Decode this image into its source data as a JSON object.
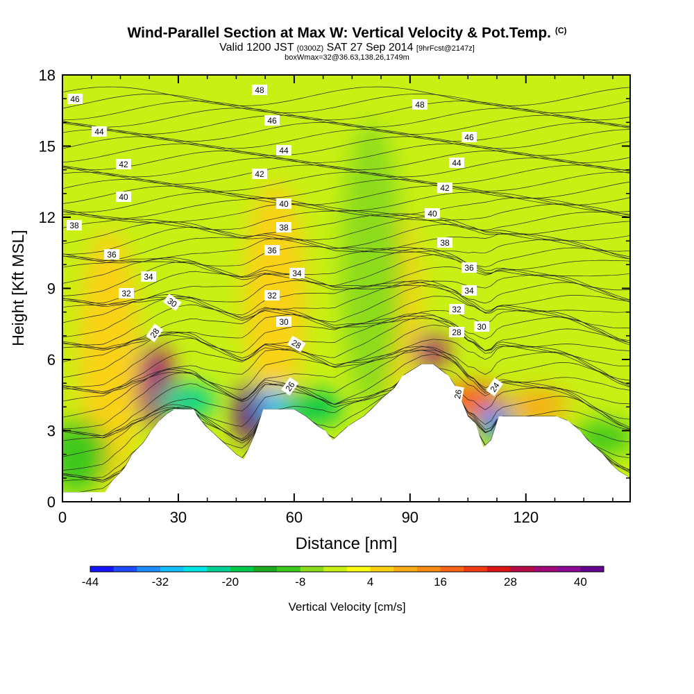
{
  "chart_data": {
    "type": "heatmap",
    "title": "Wind-Parallel Section at Max W: Vertical Velocity & Pot.Temp.",
    "title_mark": "(C)",
    "subtitle_valid": "Valid 1200 JST",
    "subtitle_utc": "(0300Z)",
    "subtitle_date": "SAT 27 Sep 2014",
    "subtitle_fcst": "[9hrFcst@2147z]",
    "subtitle2": "boxWmax=32@36.63,138.26,1749m",
    "xlabel": "Distance [nm]",
    "ylabel": "Height [Kft MSL]",
    "xlim": [
      0,
      147
    ],
    "ylim": [
      0,
      18
    ],
    "xticks": [
      "0",
      "30",
      "60",
      "90",
      "120"
    ],
    "yticks": [
      "0",
      "3",
      "6",
      "9",
      "12",
      "15",
      "18"
    ],
    "colorbar": {
      "label": "Vertical Velocity [cm/s]",
      "ticks": [
        "-44",
        "-32",
        "-20",
        "-8",
        "4",
        "16",
        "28",
        "40"
      ],
      "colors": [
        "#1414ff",
        "#1e4bff",
        "#1e8cff",
        "#14beff",
        "#00e6e6",
        "#00d296",
        "#00c84b",
        "#1eaa1e",
        "#3cc81e",
        "#8cdc1e",
        "#c8f014",
        "#fafa14",
        "#fad214",
        "#faaa14",
        "#fa8c14",
        "#fa6414",
        "#f03c14",
        "#dc1414",
        "#b40a46",
        "#a00a78",
        "#8c0a96",
        "#64008c"
      ]
    },
    "theta_labels": [
      "46",
      "44",
      "42",
      "40",
      "38",
      "36",
      "34",
      "32",
      "30",
      "28",
      "48",
      "46",
      "44",
      "42",
      "40",
      "38",
      "36",
      "34",
      "32",
      "30",
      "28",
      "26",
      "48",
      "46",
      "44",
      "42",
      "40",
      "38",
      "36",
      "34",
      "32",
      "30",
      "28",
      "26",
      "24"
    ],
    "terrain_profile": {
      "x": [
        0,
        11,
        13,
        16,
        18,
        21,
        23,
        25,
        27,
        29,
        31,
        34,
        35,
        37,
        39,
        41,
        43,
        45,
        47,
        50,
        52,
        54,
        57,
        60,
        63,
        66,
        68,
        70,
        72,
        74,
        76,
        78,
        80,
        83,
        86,
        88,
        91,
        93,
        96,
        100,
        102,
        105,
        107,
        109,
        111,
        113,
        117,
        121,
        125,
        128,
        131,
        134,
        136,
        138,
        140,
        142,
        144,
        147
      ],
      "height_kft": [
        0.4,
        0.4,
        0.9,
        1.4,
        2.0,
        2.5,
        3.0,
        3.4,
        3.7,
        3.9,
        3.9,
        3.9,
        3.6,
        3.2,
        2.9,
        2.6,
        2.3,
        2.0,
        1.8,
        2.9,
        3.9,
        3.9,
        3.9,
        3.9,
        3.6,
        3.2,
        3.0,
        2.6,
        2.9,
        3.2,
        3.4,
        3.6,
        3.9,
        4.4,
        4.8,
        5.3,
        5.6,
        5.8,
        5.8,
        5.3,
        4.8,
        3.6,
        3.3,
        2.3,
        2.6,
        3.6,
        3.6,
        3.6,
        3.6,
        3.6,
        3.4,
        3.0,
        2.6,
        2.3,
        2.0,
        1.6,
        1.3,
        1.0
      ]
    },
    "w_cells": [
      {
        "x": 26,
        "h": 5.5,
        "w": 40
      },
      {
        "x": 24,
        "h": 6.6,
        "w": 30
      },
      {
        "x": 49,
        "h": 5.0,
        "w": 40
      },
      {
        "x": 95,
        "h": 6.9,
        "w": 30
      },
      {
        "x": 106,
        "h": 5.0,
        "w": 16
      },
      {
        "x": 123,
        "h": 4.5,
        "w": 8
      },
      {
        "x": 12,
        "h": 11.5,
        "w": 4
      },
      {
        "x": 55,
        "h": 13.5,
        "w": 4
      },
      {
        "x": 85,
        "h": 12.5,
        "w": 4
      },
      {
        "x": 112,
        "h": 3.6,
        "w": -36
      },
      {
        "x": 32,
        "h": 4.6,
        "w": -26
      },
      {
        "x": 55,
        "h": 4.3,
        "w": -34
      },
      {
        "x": 65,
        "h": 4.6,
        "w": -20
      },
      {
        "x": 4,
        "h": 3.5,
        "w": -14
      },
      {
        "x": 140,
        "h": 3.4,
        "w": -14
      },
      {
        "x": 80,
        "h": 16.0,
        "w": -8
      }
    ]
  }
}
